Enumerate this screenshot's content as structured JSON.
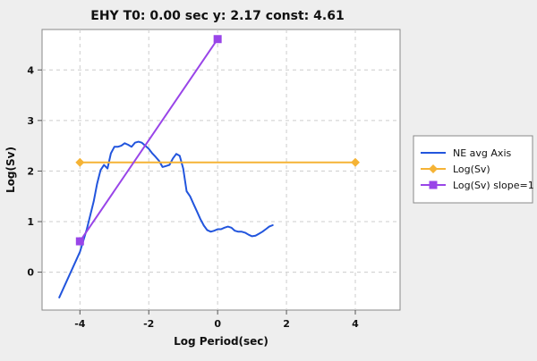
{
  "chart_data": {
    "type": "line",
    "title": "EHY T0: 0.00 sec  y: 2.17 const: 4.61",
    "xlabel": "Log Period(sec)",
    "ylabel": "Log(Sv)",
    "xlim": [
      -5.1,
      5.3
    ],
    "ylim": [
      -0.75,
      4.8
    ],
    "xticks": [
      -4,
      -2,
      0,
      2,
      4
    ],
    "yticks": [
      0,
      1,
      2,
      3,
      4
    ],
    "grid": true,
    "legend_position": "right",
    "series": [
      {
        "name": "NE avg Axis",
        "color": "#2255dd",
        "marker": "none",
        "x": [
          -4.6,
          -4.4,
          -4.2,
          -4.0,
          -3.8,
          -3.6,
          -3.5,
          -3.4,
          -3.3,
          -3.2,
          -3.1,
          -3.0,
          -2.9,
          -2.8,
          -2.7,
          -2.6,
          -2.5,
          -2.4,
          -2.3,
          -2.2,
          -2.1,
          -2.0,
          -1.9,
          -1.8,
          -1.7,
          -1.6,
          -1.5,
          -1.4,
          -1.3,
          -1.2,
          -1.1,
          -1.0,
          -0.9,
          -0.8,
          -0.7,
          -0.6,
          -0.5,
          -0.4,
          -0.3,
          -0.2,
          -0.1,
          0.0,
          0.1,
          0.2,
          0.3,
          0.4,
          0.5,
          0.6,
          0.7,
          0.8,
          0.9,
          1.0,
          1.1,
          1.2,
          1.3,
          1.4,
          1.5,
          1.6
        ],
        "y": [
          -0.5,
          -0.2,
          0.1,
          0.4,
          0.85,
          1.4,
          1.75,
          2.02,
          2.12,
          2.05,
          2.35,
          2.48,
          2.48,
          2.5,
          2.55,
          2.52,
          2.48,
          2.56,
          2.58,
          2.56,
          2.5,
          2.44,
          2.35,
          2.28,
          2.2,
          2.08,
          2.1,
          2.12,
          2.25,
          2.34,
          2.3,
          2.05,
          1.6,
          1.5,
          1.35,
          1.2,
          1.05,
          0.92,
          0.83,
          0.8,
          0.82,
          0.85,
          0.85,
          0.88,
          0.9,
          0.88,
          0.82,
          0.8,
          0.8,
          0.78,
          0.74,
          0.71,
          0.72,
          0.76,
          0.8,
          0.85,
          0.9,
          0.93
        ]
      },
      {
        "name": "Log(Sv)",
        "color": "#f5b335",
        "marker": "diamond",
        "x": [
          -4,
          4
        ],
        "y": [
          2.17,
          2.17
        ]
      },
      {
        "name": "Log(Sv) slope=1",
        "color": "#9945e8",
        "marker": "square",
        "x": [
          -4,
          0
        ],
        "y": [
          0.61,
          4.61
        ]
      }
    ]
  }
}
